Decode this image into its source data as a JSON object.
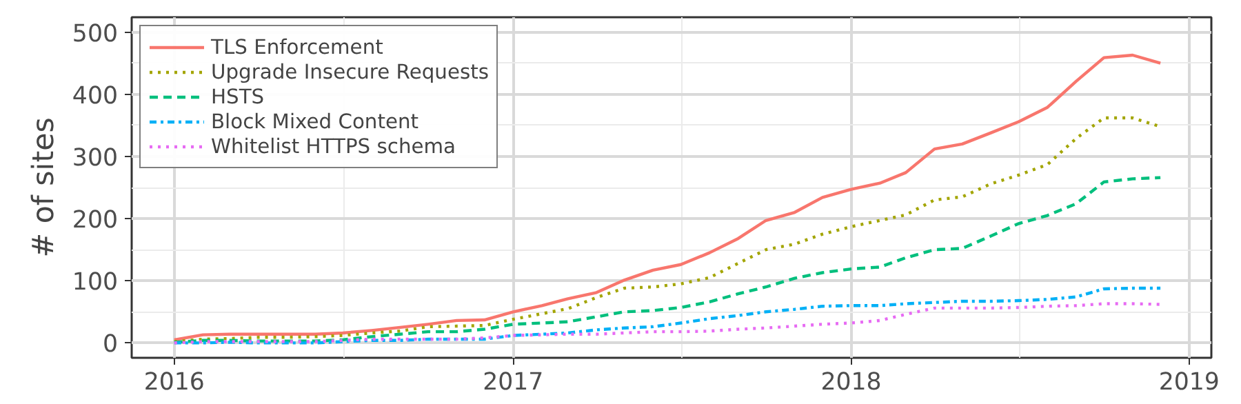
{
  "chart_data": {
    "type": "line",
    "ylabel": "# of sites",
    "x": [
      "2016-01",
      "2016-02",
      "2016-03",
      "2016-04",
      "2016-05",
      "2016-06",
      "2016-07",
      "2016-08",
      "2016-09",
      "2016-10",
      "2016-11",
      "2016-12",
      "2017-01",
      "2017-02",
      "2017-03",
      "2017-04",
      "2017-05",
      "2017-06",
      "2017-07",
      "2017-08",
      "2017-09",
      "2017-10",
      "2017-11",
      "2017-12",
      "2018-01",
      "2018-02",
      "2018-03",
      "2018-04",
      "2018-05",
      "2018-06",
      "2018-07",
      "2018-08",
      "2018-09",
      "2018-10",
      "2018-11",
      "2018-12"
    ],
    "series": [
      {
        "name": "TLS Enforcement",
        "color": "#f8766d",
        "line_style": "solid",
        "values": [
          5,
          13,
          14,
          14,
          14,
          14,
          16,
          20,
          25,
          30,
          36,
          37,
          50,
          60,
          71,
          81,
          101,
          117,
          126,
          145,
          168,
          197,
          210,
          234,
          247,
          257,
          274,
          312,
          320,
          338,
          356,
          379,
          421,
          459,
          463,
          450
        ]
      },
      {
        "name": "Upgrade Insecure Requests",
        "color": "#a3a500",
        "line_style": "dotted",
        "values": [
          2,
          6,
          7,
          9,
          9,
          10,
          12,
          16,
          19,
          26,
          27,
          28,
          38,
          47,
          55,
          73,
          88,
          90,
          95,
          105,
          128,
          150,
          159,
          175,
          187,
          197,
          206,
          230,
          235,
          256,
          270,
          287,
          329,
          362,
          362,
          348
        ]
      },
      {
        "name": "HSTS",
        "color": "#00bf7d",
        "line_style": "dashed",
        "values": [
          1,
          4,
          4,
          3,
          3,
          3,
          5,
          10,
          14,
          18,
          18,
          22,
          30,
          32,
          34,
          42,
          50,
          52,
          57,
          66,
          79,
          90,
          104,
          113,
          119,
          122,
          137,
          150,
          152,
          172,
          192,
          205,
          224,
          259,
          264,
          266
        ]
      },
      {
        "name": "Block Mixed Content",
        "color": "#00b0f6",
        "line_style": "dashdot",
        "values": [
          0,
          0,
          1,
          0,
          0,
          0,
          2,
          4,
          4,
          6,
          6,
          6,
          12,
          14,
          16,
          21,
          24,
          26,
          32,
          39,
          44,
          50,
          54,
          59,
          60,
          60,
          63,
          65,
          67,
          67,
          68,
          70,
          74,
          87,
          88,
          88
        ]
      },
      {
        "name": "Whitelist HTTPS schema",
        "color": "#e76bf3",
        "line_style": "dotted",
        "values": [
          0,
          2,
          2,
          2,
          2,
          2,
          4,
          6,
          6,
          6,
          6,
          8,
          12,
          13,
          14,
          14,
          16,
          18,
          18,
          19,
          22,
          24,
          27,
          30,
          32,
          36,
          46,
          56,
          56,
          56,
          57,
          59,
          60,
          63,
          63,
          62
        ]
      }
    ],
    "xlim": [
      "2015-11-16",
      "2019-01-25"
    ],
    "xticks": [
      {
        "value": "2016-01-01",
        "label": "2016"
      },
      {
        "value": "2017-01-01",
        "label": "2017"
      },
      {
        "value": "2018-01-01",
        "label": "2018"
      },
      {
        "value": "2019-01-01",
        "label": "2019"
      }
    ],
    "ylim": [
      -24,
      524
    ],
    "yticks": [
      0,
      100,
      200,
      300,
      400,
      500
    ],
    "grid": true,
    "legend": "top left"
  }
}
